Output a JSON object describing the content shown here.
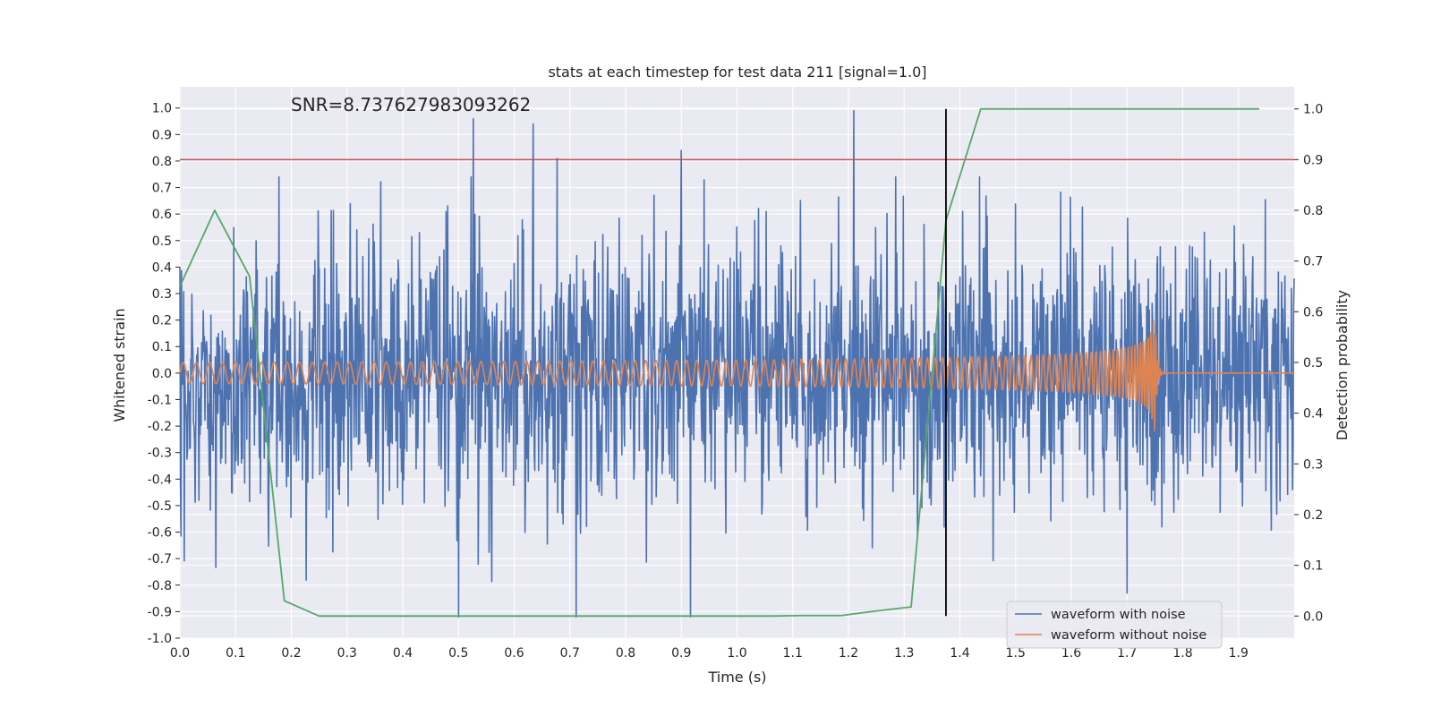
{
  "chart_data": {
    "type": "line",
    "title": "stats at each timestep for test data 211 [signal=1.0]",
    "xlabel": "Time (s)",
    "ylabel": "Whitened strain",
    "y2label": "Detection probability",
    "annotation": "SNR=8.737627983093262",
    "xlim": [
      0.0,
      2.0
    ],
    "ylim": [
      -1.0,
      1.08
    ],
    "y2lim": [
      -0.0436,
      1.0436
    ],
    "grid": true,
    "legend_position": "lower-right",
    "x_ticks": [
      "0.0",
      "0.1",
      "0.2",
      "0.3",
      "0.4",
      "0.5",
      "0.6",
      "0.7",
      "0.8",
      "0.9",
      "1.0",
      "1.1",
      "1.2",
      "1.3",
      "1.4",
      "1.5",
      "1.6",
      "1.7",
      "1.8",
      "1.9"
    ],
    "y_ticks": [
      "1.0",
      "0.9",
      "0.8",
      "0.7",
      "0.6",
      "0.5",
      "0.4",
      "0.3",
      "0.2",
      "0.1",
      "0.0",
      "-0.1",
      "-0.2",
      "-0.3",
      "-0.4",
      "-0.5",
      "-0.6",
      "-0.7",
      "-0.8",
      "-0.9",
      "-1.0"
    ],
    "y2_ticks": [
      "1.0",
      "0.9",
      "0.8",
      "0.7",
      "0.6",
      "0.5",
      "0.4",
      "0.3",
      "0.2",
      "0.1",
      "0.0"
    ],
    "threshold_line": {
      "axis": "y2",
      "value": 0.9,
      "color": "#c44e52"
    },
    "vertical_marker": {
      "x": 1.375,
      "color": "#000000"
    },
    "series": [
      {
        "name": "waveform with noise",
        "axis": "y",
        "color": "#4c72b0",
        "kind": "noise",
        "x_range": [
          0.0,
          2.0
        ],
        "amplitude_range": [
          -0.92,
          1.0
        ],
        "notable_peaks": [
          [
            0.527,
            0.96
          ],
          [
            0.634,
            0.94
          ],
          [
            0.677,
            0.81
          ],
          [
            0.9,
            0.84
          ],
          [
            1.21,
            0.99
          ],
          [
            0.5,
            -0.92
          ],
          [
            1.7,
            -0.83
          ],
          [
            0.0,
            0.4
          ]
        ]
      },
      {
        "name": "waveform without noise",
        "axis": "y",
        "color": "#dd8452",
        "kind": "chirp",
        "x_range": [
          0.0,
          2.0
        ],
        "merger_time": 1.75,
        "start_amplitude": 0.04,
        "peak_amplitude": 0.22
      },
      {
        "axis": "y2",
        "color": "#55a868",
        "kind": "probability",
        "x": [
          0.0,
          0.0625,
          0.125,
          0.1875,
          0.25,
          0.3125,
          0.375,
          0.4375,
          0.5,
          0.5625,
          0.625,
          0.6875,
          0.75,
          0.8125,
          0.875,
          0.9375,
          1.0,
          1.0625,
          1.125,
          1.1875,
          1.25,
          1.3125,
          1.375,
          1.4375,
          1.5,
          1.5625,
          1.625,
          1.6875,
          1.75,
          1.8125,
          1.875,
          1.9375
        ],
        "values": [
          0.65,
          0.8,
          0.67,
          0.03,
          0.0,
          0.0,
          0.0,
          0.0,
          0.0,
          0.0,
          0.0,
          0.0,
          0.0,
          0.0,
          0.0,
          0.0,
          0.0,
          0.0,
          0.001,
          0.001,
          0.01,
          0.018,
          0.78,
          1.0,
          1.0,
          1.0,
          1.0,
          1.0,
          1.0,
          1.0,
          1.0,
          1.0
        ]
      }
    ]
  }
}
